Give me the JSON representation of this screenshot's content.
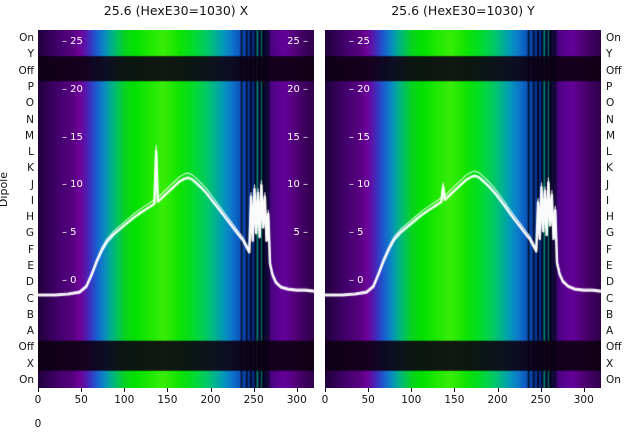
{
  "figure": {
    "dipole_label": "Dipole",
    "extra_corner_label": "0",
    "tick_dash": "–",
    "row_labels": [
      "On",
      "Y",
      "Off",
      "P",
      "O",
      "N",
      "M",
      "L",
      "K",
      "J",
      "I",
      "H",
      "G",
      "F",
      "E",
      "D",
      "C",
      "B",
      "A",
      "Off",
      "X",
      "On"
    ]
  },
  "chart_data": [
    {
      "type": "heatmap",
      "title": "25.6 (HexE30=1030) X",
      "x_range": [
        0,
        320
      ],
      "x_label_ticks": [
        0,
        50,
        100,
        150,
        200,
        250,
        300
      ],
      "rows_top_to_bottom": [
        "On",
        "Y",
        "Off",
        "P",
        "O",
        "N",
        "M",
        "L",
        "K",
        "J",
        "I",
        "H",
        "G",
        "F",
        "E",
        "D",
        "C",
        "B",
        "A",
        "Off",
        "X",
        "On"
      ],
      "value_ticks_left": [
        25,
        20,
        15,
        10,
        5,
        0
      ],
      "value_ticks_right": [
        25,
        20,
        15,
        10,
        5
      ],
      "value_axis": {
        "min": 0,
        "max": 25,
        "zero_frac": 0.701,
        "top25_frac": 0.0335
      },
      "band_color": "rgba(13,0,18,0.90)",
      "dark_row_bands": [
        {
          "rows": "Y-Off",
          "from_frac": 0.073,
          "to_frac": 0.143
        },
        {
          "rows": "Off-X",
          "from_frac": 0.868,
          "to_frac": 0.952
        }
      ],
      "color_stops": [
        [
          0.0,
          "#20003a"
        ],
        [
          0.045,
          "#35005a"
        ],
        [
          0.085,
          "#470070"
        ],
        [
          0.125,
          "#560080"
        ],
        [
          0.15,
          "#6e0098"
        ],
        [
          0.17,
          "#5a14a8"
        ],
        [
          0.19,
          "#3934c2"
        ],
        [
          0.212,
          "#1b5ccf"
        ],
        [
          0.238,
          "#0b86c4"
        ],
        [
          0.262,
          "#00ab96"
        ],
        [
          0.288,
          "#00c25c"
        ],
        [
          0.315,
          "#06d41e"
        ],
        [
          0.35,
          "#00e000"
        ],
        [
          0.4,
          "#1ce800"
        ],
        [
          0.455,
          "#38ee08"
        ],
        [
          0.51,
          "#10e400"
        ],
        [
          0.56,
          "#00dc28"
        ],
        [
          0.605,
          "#00cc5e"
        ],
        [
          0.64,
          "#00b48e"
        ],
        [
          0.668,
          "#009cb4"
        ],
        [
          0.692,
          "#0c82c8"
        ],
        [
          0.718,
          "#0e64c6"
        ],
        [
          0.742,
          "#0b4ab0"
        ],
        [
          0.762,
          "#093896"
        ],
        [
          0.782,
          "#07287e"
        ],
        [
          0.806,
          "#0a2270"
        ],
        [
          0.828,
          "#251060"
        ],
        [
          0.843,
          "#47047e"
        ],
        [
          0.868,
          "#5a0090"
        ],
        [
          0.896,
          "#64009a"
        ],
        [
          0.922,
          "#580082"
        ],
        [
          0.955,
          "#440064"
        ],
        [
          1.0,
          "#30004c"
        ]
      ],
      "vertical_stripes": [
        {
          "x": 235,
          "w": 2,
          "color": "rgba(0,2,18,0.80)"
        },
        {
          "x": 241,
          "w": 2,
          "color": "rgba(0,2,18,0.80)"
        },
        {
          "x": 246,
          "w": 2,
          "color": "rgba(0,2,18,0.85)"
        },
        {
          "x": 251,
          "w": 2,
          "color": "rgba(0,2,18,0.85)"
        },
        {
          "x": 253.5,
          "w": 1.5,
          "color": "rgba(0,190,60,0.70)"
        },
        {
          "x": 256,
          "w": 2,
          "color": "rgba(0,2,18,0.90)"
        },
        {
          "x": 258.5,
          "w": 1.5,
          "color": "rgba(0,170,60,0.60)"
        },
        {
          "x": 260,
          "w": 3,
          "color": "rgba(0,2,18,0.90)"
        },
        {
          "x": 264,
          "w": 2,
          "color": "rgba(0,2,18,0.85)"
        },
        {
          "x": 267,
          "w": 1.5,
          "color": "rgba(0,2,18,0.70)"
        }
      ],
      "line_series": {
        "color": "#ffffff",
        "points": [
          [
            0,
            -1.5
          ],
          [
            20,
            -1.5
          ],
          [
            35,
            -1.4
          ],
          [
            48,
            -1.2
          ],
          [
            56,
            -0.6
          ],
          [
            62,
            0.6
          ],
          [
            68,
            2.0
          ],
          [
            74,
            3.2
          ],
          [
            80,
            4.1
          ],
          [
            88,
            4.9
          ],
          [
            96,
            5.5
          ],
          [
            104,
            6.1
          ],
          [
            112,
            6.7
          ],
          [
            120,
            7.2
          ],
          [
            127,
            7.6
          ],
          [
            132,
            7.9
          ],
          [
            135,
            8.1
          ],
          [
            137,
            13.6
          ],
          [
            139,
            8.3
          ],
          [
            145,
            8.8
          ],
          [
            152,
            9.4
          ],
          [
            158,
            9.9
          ],
          [
            164,
            10.4
          ],
          [
            170,
            10.7
          ],
          [
            174,
            10.8
          ],
          [
            179,
            10.6
          ],
          [
            184,
            10.2
          ],
          [
            190,
            9.7
          ],
          [
            196,
            9.1
          ],
          [
            202,
            8.4
          ],
          [
            208,
            7.7
          ],
          [
            214,
            7.0
          ],
          [
            220,
            6.3
          ],
          [
            226,
            5.6
          ],
          [
            232,
            4.9
          ],
          [
            238,
            4.2
          ],
          [
            242,
            3.5
          ],
          [
            245,
            3.0
          ],
          [
            247,
            8.8
          ],
          [
            249,
            4.2
          ],
          [
            251,
            9.6
          ],
          [
            253,
            5.0
          ],
          [
            255,
            9.2
          ],
          [
            257,
            4.6
          ],
          [
            259,
            10.0
          ],
          [
            261,
            5.6
          ],
          [
            263,
            8.8
          ],
          [
            265,
            4.2
          ],
          [
            267,
            7.0
          ],
          [
            269,
            1.8
          ],
          [
            272,
            0.6
          ],
          [
            276,
            -0.2
          ],
          [
            282,
            -0.7
          ],
          [
            290,
            -0.9
          ],
          [
            300,
            -1.0
          ],
          [
            310,
            -1.0
          ],
          [
            320,
            -1.1
          ]
        ]
      }
    },
    {
      "type": "heatmap",
      "title": "25.6 (HexE30=1030) Y",
      "x_range": [
        0,
        320
      ],
      "x_label_ticks": [
        0,
        50,
        100,
        150,
        200,
        250,
        300
      ],
      "rows_top_to_bottom": [
        "On",
        "Y",
        "Off",
        "P",
        "O",
        "N",
        "M",
        "L",
        "K",
        "J",
        "I",
        "H",
        "G",
        "F",
        "E",
        "D",
        "C",
        "B",
        "A",
        "Off",
        "X",
        "On"
      ],
      "value_ticks_left": [
        25,
        20,
        15,
        10,
        5,
        0
      ],
      "value_ticks_right": [],
      "value_axis": {
        "min": 0,
        "max": 25,
        "zero_frac": 0.701,
        "top25_frac": 0.0335
      },
      "band_color": "rgba(13,0,18,0.90)",
      "dark_row_bands": [
        {
          "rows": "Y-Off",
          "from_frac": 0.073,
          "to_frac": 0.143
        },
        {
          "rows": "Off-X",
          "from_frac": 0.868,
          "to_frac": 0.952
        }
      ],
      "color_stops": [
        [
          0.0,
          "#20003a"
        ],
        [
          0.045,
          "#35005a"
        ],
        [
          0.085,
          "#470070"
        ],
        [
          0.125,
          "#560080"
        ],
        [
          0.15,
          "#6e0098"
        ],
        [
          0.17,
          "#5a14a8"
        ],
        [
          0.19,
          "#3934c2"
        ],
        [
          0.212,
          "#1b5ccf"
        ],
        [
          0.238,
          "#0b86c4"
        ],
        [
          0.262,
          "#00ab96"
        ],
        [
          0.288,
          "#00c25c"
        ],
        [
          0.315,
          "#06d41e"
        ],
        [
          0.35,
          "#00e000"
        ],
        [
          0.4,
          "#1ce800"
        ],
        [
          0.455,
          "#38ee08"
        ],
        [
          0.51,
          "#10e400"
        ],
        [
          0.56,
          "#00dc28"
        ],
        [
          0.605,
          "#00cc5e"
        ],
        [
          0.64,
          "#00b48e"
        ],
        [
          0.668,
          "#009cb4"
        ],
        [
          0.692,
          "#0c82c8"
        ],
        [
          0.718,
          "#0e64c6"
        ],
        [
          0.742,
          "#0b4ab0"
        ],
        [
          0.762,
          "#093896"
        ],
        [
          0.782,
          "#07287e"
        ],
        [
          0.806,
          "#0a2270"
        ],
        [
          0.828,
          "#251060"
        ],
        [
          0.843,
          "#47047e"
        ],
        [
          0.868,
          "#5a0090"
        ],
        [
          0.896,
          "#64009a"
        ],
        [
          0.922,
          "#580082"
        ],
        [
          0.955,
          "#440064"
        ],
        [
          1.0,
          "#30004c"
        ]
      ],
      "vertical_stripes": [
        {
          "x": 235,
          "w": 2,
          "color": "rgba(0,2,18,0.80)"
        },
        {
          "x": 241,
          "w": 2,
          "color": "rgba(0,2,18,0.80)"
        },
        {
          "x": 246,
          "w": 2,
          "color": "rgba(0,2,18,0.85)"
        },
        {
          "x": 251,
          "w": 2,
          "color": "rgba(0,2,18,0.85)"
        },
        {
          "x": 253.5,
          "w": 1.5,
          "color": "rgba(0,190,60,0.70)"
        },
        {
          "x": 256,
          "w": 2,
          "color": "rgba(0,2,18,0.90)"
        },
        {
          "x": 258.5,
          "w": 1.5,
          "color": "rgba(0,170,60,0.60)"
        },
        {
          "x": 260,
          "w": 3,
          "color": "rgba(0,2,18,0.90)"
        },
        {
          "x": 264,
          "w": 2,
          "color": "rgba(0,2,18,0.85)"
        },
        {
          "x": 267,
          "w": 1.5,
          "color": "rgba(0,2,18,0.70)"
        }
      ],
      "line_series": {
        "color": "#ffffff",
        "points": [
          [
            0,
            -1.5
          ],
          [
            20,
            -1.5
          ],
          [
            35,
            -1.4
          ],
          [
            48,
            -1.2
          ],
          [
            56,
            -0.6
          ],
          [
            62,
            0.7
          ],
          [
            68,
            2.1
          ],
          [
            74,
            3.3
          ],
          [
            80,
            4.3
          ],
          [
            88,
            5.1
          ],
          [
            96,
            5.7
          ],
          [
            104,
            6.3
          ],
          [
            112,
            6.9
          ],
          [
            120,
            7.4
          ],
          [
            127,
            7.8
          ],
          [
            132,
            8.1
          ],
          [
            135,
            8.3
          ],
          [
            137,
            9.8
          ],
          [
            139,
            8.5
          ],
          [
            145,
            9.0
          ],
          [
            152,
            9.6
          ],
          [
            158,
            10.1
          ],
          [
            164,
            10.6
          ],
          [
            170,
            10.9
          ],
          [
            174,
            11.0
          ],
          [
            179,
            10.8
          ],
          [
            184,
            10.4
          ],
          [
            190,
            9.9
          ],
          [
            196,
            9.3
          ],
          [
            202,
            8.6
          ],
          [
            208,
            7.9
          ],
          [
            214,
            7.1
          ],
          [
            220,
            6.4
          ],
          [
            226,
            5.7
          ],
          [
            232,
            5.0
          ],
          [
            238,
            4.3
          ],
          [
            242,
            3.6
          ],
          [
            245,
            3.1
          ],
          [
            247,
            8.2
          ],
          [
            249,
            4.4
          ],
          [
            251,
            9.8
          ],
          [
            253,
            5.2
          ],
          [
            255,
            9.4
          ],
          [
            257,
            4.8
          ],
          [
            259,
            10.3
          ],
          [
            261,
            5.8
          ],
          [
            263,
            9.0
          ],
          [
            265,
            4.4
          ],
          [
            267,
            7.4
          ],
          [
            269,
            1.9
          ],
          [
            272,
            0.7
          ],
          [
            276,
            -0.1
          ],
          [
            282,
            -0.6
          ],
          [
            290,
            -0.9
          ],
          [
            300,
            -1.0
          ],
          [
            310,
            -1.0
          ],
          [
            320,
            -1.1
          ]
        ]
      }
    }
  ]
}
